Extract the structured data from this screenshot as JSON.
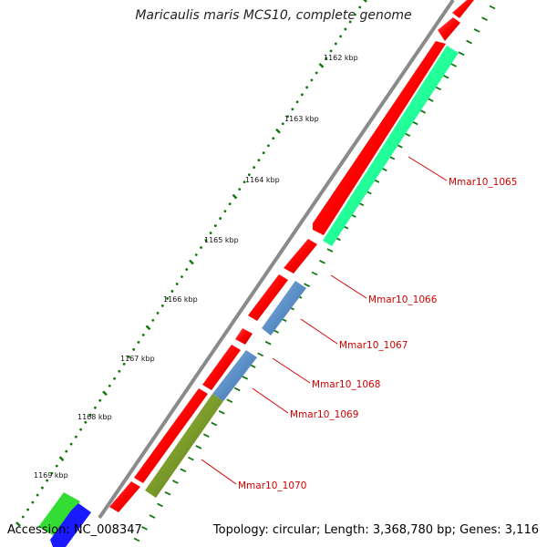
{
  "title": "Maricaulis maris MCS10, complete genome",
  "footer": {
    "accession": "Accession: NC_008347",
    "topology": "Topology: circular; Length: 3,368,780 bp; Genes: 3,116"
  },
  "scale_ticks": [
    "1162 kbp",
    "1163 kbp",
    "1164 kbp",
    "1165 kbp",
    "1166 kbp",
    "1167 kbp",
    "1168 kbp",
    "1169 kbp"
  ],
  "gene_labels": [
    "Mmar10_1065",
    "Mmar10_1066",
    "Mmar10_1067",
    "Mmar10_1068",
    "Mmar10_1069",
    "Mmar10_1070"
  ],
  "colors": {
    "backbone": "#8a8a8a",
    "cds_forward": "#ff1a1a",
    "cds_reverse_cyan": "#22ff99",
    "cds_reverse_blue": "#5b8fc7",
    "cds_reverse_olive": "#7a9a2a",
    "cds_green": "#33dd33",
    "cds_blue": "#1a1aff",
    "tick_dots": "#117711",
    "label_red": "#d40000"
  }
}
